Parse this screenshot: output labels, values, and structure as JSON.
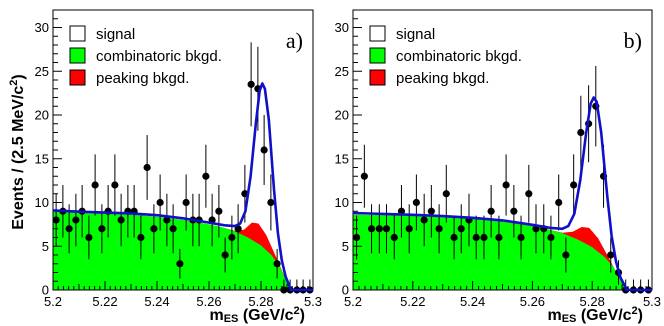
{
  "chart_data": [
    {
      "type": "scatter",
      "panel_label": "a)",
      "x_range": [
        5.2,
        5.3
      ],
      "y_range": [
        0,
        32
      ],
      "x_ticks": [
        5.2,
        5.22,
        5.24,
        5.26,
        5.28,
        5.3
      ],
      "x_tick_labels": [
        "5.2",
        "5.22",
        "5.24",
        "5.26",
        "5.28",
        "5.3"
      ],
      "y_ticks": [
        0,
        5,
        10,
        15,
        20,
        25,
        30
      ],
      "y_tick_labels": [
        "0",
        "5",
        "10",
        "15",
        "20",
        "25",
        "30"
      ],
      "legend": {
        "placement": "top-left",
        "entries": [
          {
            "label": "signal",
            "color": "#ffffff"
          },
          {
            "label": "combinatoric bkgd.",
            "color": "#00ff00"
          },
          {
            "label": "peaking bkgd.",
            "color": "#ff0000"
          }
        ]
      },
      "points": [
        {
          "x": 5.2012,
          "y": 8,
          "err": 3
        },
        {
          "x": 5.2038,
          "y": 9,
          "err": 3
        },
        {
          "x": 5.2062,
          "y": 7,
          "err": 2.8
        },
        {
          "x": 5.2088,
          "y": 8,
          "err": 3
        },
        {
          "x": 5.2112,
          "y": 9,
          "err": 3
        },
        {
          "x": 5.2138,
          "y": 6,
          "err": 2.5
        },
        {
          "x": 5.2162,
          "y": 12,
          "err": 3.5
        },
        {
          "x": 5.2188,
          "y": 7,
          "err": 2.8
        },
        {
          "x": 5.2212,
          "y": 9,
          "err": 3
        },
        {
          "x": 5.2238,
          "y": 12,
          "err": 3.5
        },
        {
          "x": 5.2262,
          "y": 8,
          "err": 3
        },
        {
          "x": 5.2288,
          "y": 9,
          "err": 3
        },
        {
          "x": 5.2312,
          "y": 9,
          "err": 3
        },
        {
          "x": 5.2338,
          "y": 6,
          "err": 2.5
        },
        {
          "x": 5.2362,
          "y": 14,
          "err": 3.7
        },
        {
          "x": 5.2388,
          "y": 7,
          "err": 2.8
        },
        {
          "x": 5.2412,
          "y": 10,
          "err": 3.2
        },
        {
          "x": 5.2438,
          "y": 8,
          "err": 3
        },
        {
          "x": 5.2462,
          "y": 7,
          "err": 2.8
        },
        {
          "x": 5.2488,
          "y": 3,
          "err": 1.7
        },
        {
          "x": 5.2512,
          "y": 10,
          "err": 3.2
        },
        {
          "x": 5.2538,
          "y": 8,
          "err": 3
        },
        {
          "x": 5.2562,
          "y": 8,
          "err": 3
        },
        {
          "x": 5.2588,
          "y": 13,
          "err": 3.6
        },
        {
          "x": 5.2612,
          "y": 8,
          "err": 3
        },
        {
          "x": 5.2638,
          "y": 9,
          "err": 3
        },
        {
          "x": 5.2662,
          "y": 4,
          "err": 2
        },
        {
          "x": 5.2688,
          "y": 6,
          "err": 2.5
        },
        {
          "x": 5.2712,
          "y": 7,
          "err": 2.8
        },
        {
          "x": 5.2738,
          "y": 11,
          "err": 3.3
        },
        {
          "x": 5.2762,
          "y": 23.5,
          "err": 4.8
        },
        {
          "x": 5.2788,
          "y": 23,
          "err": 4.8
        },
        {
          "x": 5.2812,
          "y": 16,
          "err": 4
        },
        {
          "x": 5.2838,
          "y": 10,
          "err": 3.2
        },
        {
          "x": 5.2862,
          "y": 3,
          "err": 1.7
        },
        {
          "x": 5.2888,
          "y": 0,
          "err": 1.2
        },
        {
          "x": 5.2912,
          "y": 0,
          "err": 1.2
        },
        {
          "x": 5.2938,
          "y": 0,
          "err": 1.2
        },
        {
          "x": 5.2962,
          "y": 0,
          "err": 1.2
        },
        {
          "x": 5.2988,
          "y": 0,
          "err": 1.2
        }
      ],
      "combinatoric_curve": [
        {
          "x": 5.2,
          "y": 8.9
        },
        {
          "x": 5.21,
          "y": 8.8
        },
        {
          "x": 5.22,
          "y": 8.7
        },
        {
          "x": 5.23,
          "y": 8.6
        },
        {
          "x": 5.24,
          "y": 8.35
        },
        {
          "x": 5.25,
          "y": 8.0
        },
        {
          "x": 5.26,
          "y": 7.5
        },
        {
          "x": 5.265,
          "y": 7.15
        },
        {
          "x": 5.27,
          "y": 6.7
        },
        {
          "x": 5.275,
          "y": 6.0
        },
        {
          "x": 5.28,
          "y": 5.1
        },
        {
          "x": 5.284,
          "y": 4.0
        },
        {
          "x": 5.287,
          "y": 2.8
        },
        {
          "x": 5.289,
          "y": 1.5
        },
        {
          "x": 5.2905,
          "y": 0.6
        },
        {
          "x": 5.2915,
          "y": 0
        }
      ],
      "peaking_curve": [
        {
          "x": 5.2,
          "y": 8.9
        },
        {
          "x": 5.21,
          "y": 8.8
        },
        {
          "x": 5.22,
          "y": 8.7
        },
        {
          "x": 5.23,
          "y": 8.6
        },
        {
          "x": 5.24,
          "y": 8.35
        },
        {
          "x": 5.25,
          "y": 8.0
        },
        {
          "x": 5.26,
          "y": 7.5
        },
        {
          "x": 5.265,
          "y": 7.15
        },
        {
          "x": 5.27,
          "y": 6.75
        },
        {
          "x": 5.2735,
          "y": 6.9
        },
        {
          "x": 5.2765,
          "y": 7.7
        },
        {
          "x": 5.279,
          "y": 7.6
        },
        {
          "x": 5.282,
          "y": 6.3
        },
        {
          "x": 5.285,
          "y": 4.3
        },
        {
          "x": 5.2875,
          "y": 2.6
        },
        {
          "x": 5.2895,
          "y": 1.2
        },
        {
          "x": 5.291,
          "y": 0.3
        },
        {
          "x": 5.2915,
          "y": 0
        }
      ],
      "total_fit": [
        {
          "x": 5.2,
          "y": 9.1
        },
        {
          "x": 5.21,
          "y": 8.95
        },
        {
          "x": 5.22,
          "y": 8.85
        },
        {
          "x": 5.23,
          "y": 8.75
        },
        {
          "x": 5.24,
          "y": 8.55
        },
        {
          "x": 5.25,
          "y": 8.2
        },
        {
          "x": 5.26,
          "y": 7.7
        },
        {
          "x": 5.266,
          "y": 7.4
        },
        {
          "x": 5.27,
          "y": 7.3
        },
        {
          "x": 5.272,
          "y": 7.6
        },
        {
          "x": 5.274,
          "y": 9.0
        },
        {
          "x": 5.276,
          "y": 13.0
        },
        {
          "x": 5.278,
          "y": 19.0
        },
        {
          "x": 5.2795,
          "y": 22.8
        },
        {
          "x": 5.2805,
          "y": 23.6
        },
        {
          "x": 5.2815,
          "y": 23.0
        },
        {
          "x": 5.283,
          "y": 19.5
        },
        {
          "x": 5.285,
          "y": 11.5
        },
        {
          "x": 5.2865,
          "y": 6.5
        },
        {
          "x": 5.288,
          "y": 3.4
        },
        {
          "x": 5.2895,
          "y": 1.5
        },
        {
          "x": 5.291,
          "y": 0.4
        },
        {
          "x": 5.2915,
          "y": 0
        },
        {
          "x": 5.3,
          "y": 0
        }
      ]
    },
    {
      "type": "scatter",
      "panel_label": "b)",
      "x_range": [
        5.2,
        5.3
      ],
      "y_range": [
        0,
        32
      ],
      "x_ticks": [
        5.2,
        5.22,
        5.24,
        5.26,
        5.28,
        5.3
      ],
      "x_tick_labels": [
        "5.2",
        "5.22",
        "5.24",
        "5.26",
        "5.28",
        "5.3"
      ],
      "y_ticks": [
        0,
        5,
        10,
        15,
        20,
        25,
        30
      ],
      "y_tick_labels": [
        "0",
        "5",
        "10",
        "15",
        "20",
        "25",
        "30"
      ],
      "legend": {
        "placement": "top-left",
        "entries": [
          {
            "label": "signal",
            "color": "#ffffff"
          },
          {
            "label": "combinatoric bkgd.",
            "color": "#00ff00"
          },
          {
            "label": "peaking bkgd.",
            "color": "#ff0000"
          }
        ]
      },
      "points": [
        {
          "x": 5.2012,
          "y": 6,
          "err": 2.5
        },
        {
          "x": 5.2038,
          "y": 13,
          "err": 3.6
        },
        {
          "x": 5.2062,
          "y": 7,
          "err": 2.8
        },
        {
          "x": 5.2088,
          "y": 7,
          "err": 2.8
        },
        {
          "x": 5.2112,
          "y": 7,
          "err": 2.8
        },
        {
          "x": 5.2138,
          "y": 6,
          "err": 2.5
        },
        {
          "x": 5.2162,
          "y": 9,
          "err": 3
        },
        {
          "x": 5.2188,
          "y": 7,
          "err": 2.8
        },
        {
          "x": 5.2212,
          "y": 10,
          "err": 3.2
        },
        {
          "x": 5.2238,
          "y": 8,
          "err": 3
        },
        {
          "x": 5.2262,
          "y": 9,
          "err": 3
        },
        {
          "x": 5.2288,
          "y": 7,
          "err": 2.8
        },
        {
          "x": 5.2312,
          "y": 11,
          "err": 3.3
        },
        {
          "x": 5.2338,
          "y": 6,
          "err": 2.5
        },
        {
          "x": 5.2362,
          "y": 7,
          "err": 2.8
        },
        {
          "x": 5.2388,
          "y": 8,
          "err": 3
        },
        {
          "x": 5.2412,
          "y": 6,
          "err": 2.5
        },
        {
          "x": 5.2438,
          "y": 6,
          "err": 2.5
        },
        {
          "x": 5.2462,
          "y": 9,
          "err": 3
        },
        {
          "x": 5.2488,
          "y": 6,
          "err": 2.5
        },
        {
          "x": 5.2512,
          "y": 12,
          "err": 3.5
        },
        {
          "x": 5.2538,
          "y": 9,
          "err": 3
        },
        {
          "x": 5.2562,
          "y": 6,
          "err": 2.5
        },
        {
          "x": 5.2588,
          "y": 11,
          "err": 3.3
        },
        {
          "x": 5.2612,
          "y": 7,
          "err": 2.8
        },
        {
          "x": 5.2638,
          "y": 7,
          "err": 2.8
        },
        {
          "x": 5.2662,
          "y": 6,
          "err": 2.5
        },
        {
          "x": 5.2688,
          "y": 10,
          "err": 3.2
        },
        {
          "x": 5.2712,
          "y": 4,
          "err": 2
        },
        {
          "x": 5.2738,
          "y": 12,
          "err": 3.5
        },
        {
          "x": 5.2762,
          "y": 18,
          "err": 4.2
        },
        {
          "x": 5.2788,
          "y": 19,
          "err": 4.4
        },
        {
          "x": 5.2812,
          "y": 21,
          "err": 4.6
        },
        {
          "x": 5.2838,
          "y": 13,
          "err": 3.6
        },
        {
          "x": 5.2862,
          "y": 4,
          "err": 2
        },
        {
          "x": 5.2888,
          "y": 2,
          "err": 1.4
        },
        {
          "x": 5.2912,
          "y": 0,
          "err": 1.2
        },
        {
          "x": 5.2938,
          "y": 0,
          "err": 1.2
        },
        {
          "x": 5.2962,
          "y": 0,
          "err": 1.2
        },
        {
          "x": 5.2988,
          "y": 0,
          "err": 1.2
        }
      ],
      "combinatoric_curve": [
        {
          "x": 5.2,
          "y": 8.6
        },
        {
          "x": 5.21,
          "y": 8.55
        },
        {
          "x": 5.22,
          "y": 8.45
        },
        {
          "x": 5.23,
          "y": 8.3
        },
        {
          "x": 5.24,
          "y": 8.1
        },
        {
          "x": 5.25,
          "y": 7.8
        },
        {
          "x": 5.26,
          "y": 7.3
        },
        {
          "x": 5.265,
          "y": 6.95
        },
        {
          "x": 5.27,
          "y": 6.5
        },
        {
          "x": 5.275,
          "y": 5.8
        },
        {
          "x": 5.28,
          "y": 4.9
        },
        {
          "x": 5.284,
          "y": 3.8
        },
        {
          "x": 5.287,
          "y": 2.7
        },
        {
          "x": 5.289,
          "y": 1.5
        },
        {
          "x": 5.2905,
          "y": 0.6
        },
        {
          "x": 5.2915,
          "y": 0
        }
      ],
      "peaking_curve": [
        {
          "x": 5.2,
          "y": 8.6
        },
        {
          "x": 5.21,
          "y": 8.55
        },
        {
          "x": 5.22,
          "y": 8.45
        },
        {
          "x": 5.23,
          "y": 8.3
        },
        {
          "x": 5.24,
          "y": 8.1
        },
        {
          "x": 5.25,
          "y": 7.8
        },
        {
          "x": 5.26,
          "y": 7.3
        },
        {
          "x": 5.265,
          "y": 6.95
        },
        {
          "x": 5.27,
          "y": 6.55
        },
        {
          "x": 5.2735,
          "y": 6.65
        },
        {
          "x": 5.2765,
          "y": 7.2
        },
        {
          "x": 5.279,
          "y": 7.1
        },
        {
          "x": 5.282,
          "y": 5.9
        },
        {
          "x": 5.285,
          "y": 4.0
        },
        {
          "x": 5.2875,
          "y": 2.4
        },
        {
          "x": 5.2895,
          "y": 1.1
        },
        {
          "x": 5.291,
          "y": 0.3
        },
        {
          "x": 5.2915,
          "y": 0
        }
      ],
      "total_fit": [
        {
          "x": 5.2,
          "y": 8.8
        },
        {
          "x": 5.21,
          "y": 8.7
        },
        {
          "x": 5.22,
          "y": 8.6
        },
        {
          "x": 5.23,
          "y": 8.45
        },
        {
          "x": 5.24,
          "y": 8.25
        },
        {
          "x": 5.25,
          "y": 7.95
        },
        {
          "x": 5.26,
          "y": 7.45
        },
        {
          "x": 5.266,
          "y": 7.1
        },
        {
          "x": 5.27,
          "y": 7.0
        },
        {
          "x": 5.272,
          "y": 7.3
        },
        {
          "x": 5.274,
          "y": 8.7
        },
        {
          "x": 5.276,
          "y": 12.5
        },
        {
          "x": 5.278,
          "y": 18.0
        },
        {
          "x": 5.2795,
          "y": 21.3
        },
        {
          "x": 5.2805,
          "y": 22.0
        },
        {
          "x": 5.2815,
          "y": 21.5
        },
        {
          "x": 5.283,
          "y": 18.0
        },
        {
          "x": 5.285,
          "y": 10.8
        },
        {
          "x": 5.2865,
          "y": 6.2
        },
        {
          "x": 5.288,
          "y": 3.2
        },
        {
          "x": 5.2895,
          "y": 1.4
        },
        {
          "x": 5.291,
          "y": 0.4
        },
        {
          "x": 5.2915,
          "y": 0
        },
        {
          "x": 5.3,
          "y": 0
        }
      ]
    }
  ],
  "ylabel_main": "Events / (2.5 MeV/c",
  "ylabel_sup": "2",
  "ylabel_close": ")",
  "xlabel_main": "m",
  "xlabel_sub": "ES",
  "xlabel_unit": " (GeV/c",
  "xlabel_sup": "2",
  "xlabel_close": ")"
}
